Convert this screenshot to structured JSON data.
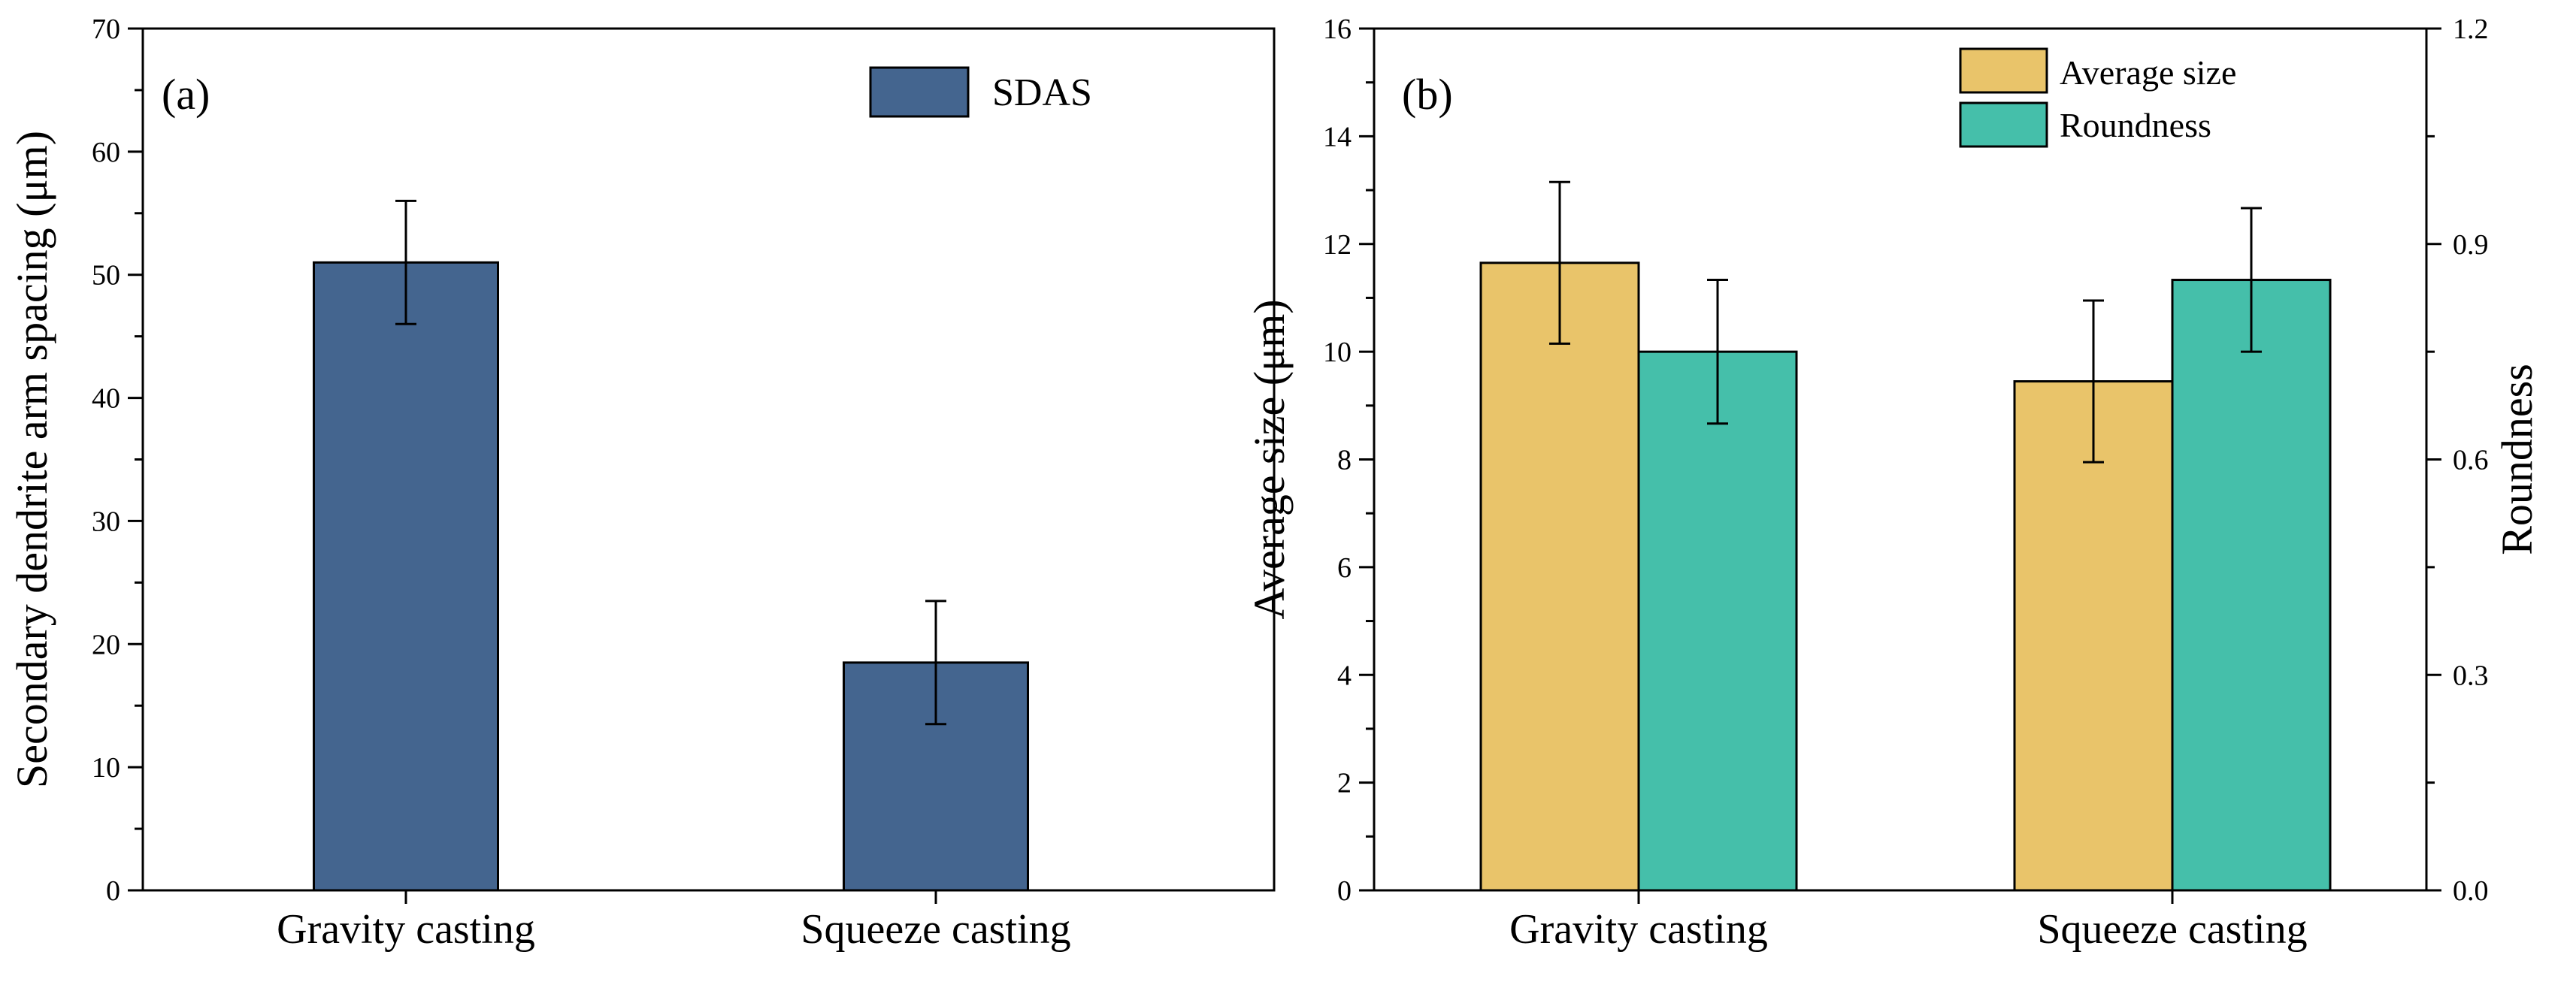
{
  "chart_data": [
    {
      "type": "bar",
      "panel_label": "(a)",
      "categories": [
        "Gravity casting",
        "Squeeze casting"
      ],
      "series": [
        {
          "name": "SDAS",
          "color": "#44658f",
          "values": [
            51.0,
            18.5
          ],
          "errors": [
            5.0,
            5.0
          ]
        }
      ],
      "ylabel": "Secondary dendrite arm spacing (μm)",
      "ylim": [
        0,
        70
      ],
      "yticks": [
        0,
        10,
        20,
        30,
        40,
        50,
        60,
        70
      ],
      "ytick_labels": [
        "0",
        "10",
        "20",
        "30",
        "40",
        "50",
        "60",
        "70"
      ],
      "legend": "top-right"
    },
    {
      "type": "bar",
      "panel_label": "(b)",
      "categories": [
        "Gravity casting",
        "Squeeze casting"
      ],
      "series": [
        {
          "name": "Average size",
          "axis": "left",
          "color": "#e9c46a",
          "values": [
            11.65,
            9.45
          ],
          "errors": [
            1.5,
            1.5
          ]
        },
        {
          "name": "Roundness",
          "axis": "right",
          "color": "#45bfaa",
          "values": [
            0.75,
            0.85
          ],
          "errors": [
            0.1,
            0.1
          ]
        }
      ],
      "ylabel": "Average size (μm)",
      "ylim": [
        0,
        16
      ],
      "yticks": [
        0,
        2,
        4,
        6,
        8,
        10,
        12,
        14,
        16
      ],
      "ytick_labels": [
        "0",
        "2",
        "4",
        "6",
        "8",
        "10",
        "12",
        "14",
        "16"
      ],
      "y2label": "Roundness",
      "y2lim": [
        0,
        1.2
      ],
      "y2ticks": [
        0,
        0.3,
        0.6,
        0.9,
        1.2
      ],
      "y2tick_labels": [
        "0.0",
        "0.3",
        "0.6",
        "0.9",
        "1.2"
      ],
      "legend": "top-center"
    }
  ]
}
